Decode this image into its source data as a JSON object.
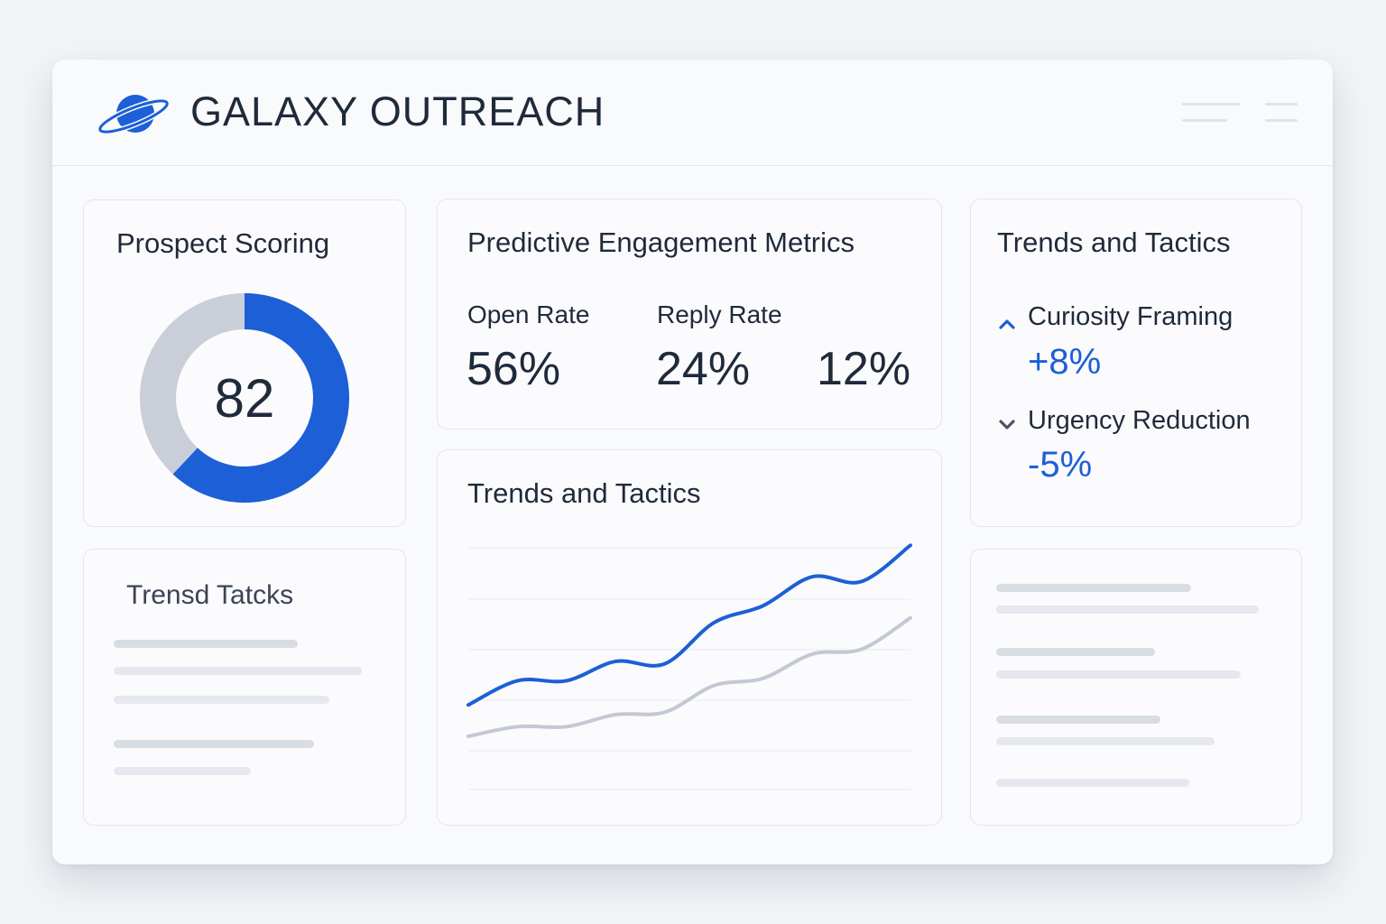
{
  "app": {
    "title": "GALAXY OUTREACH",
    "logo_icon": "planet-ring-icon",
    "menu_icon": "menu-lines-icon"
  },
  "colors": {
    "accent": "#1c5fd6",
    "secondary_line": "#c2c8d4",
    "donut_track": "#c9ced8",
    "text": "#1f2a3a"
  },
  "prospect_scoring": {
    "title": "Prospect Scoring",
    "score": "82",
    "score_fraction": 0.62
  },
  "engagement": {
    "title": "Predictive Engagement Metrics",
    "metrics": [
      {
        "label": "Open Rate",
        "value": "56%"
      },
      {
        "label": "Reply Rate",
        "value": "24%"
      },
      {
        "label": "",
        "value": "12%"
      }
    ]
  },
  "trends_tactics": {
    "title": "Trends and Tactics",
    "items": [
      {
        "label": "Curiosity Framing",
        "value": "+8%",
        "direction": "up",
        "icon": "chevron-up-icon"
      },
      {
        "label": "Urgency Reduction",
        "value": "-5%",
        "direction": "down",
        "icon": "chevron-down-icon"
      }
    ]
  },
  "trend_tactics_placeholder": {
    "title": "Trensd Tatcks"
  },
  "chart_card": {
    "title": "Trends and Tactics"
  },
  "chart_data": {
    "type": "line",
    "title": "Trends and Tactics",
    "xlabel": "",
    "ylabel": "",
    "ylim": [
      0,
      10
    ],
    "grid": true,
    "x": [
      0,
      1,
      2,
      3,
      4,
      5,
      6,
      7,
      8,
      9
    ],
    "series": [
      {
        "values": [
          3.5,
          4.5,
          4.5,
          5.3,
          5.2,
          6.9,
          7.6,
          8.8,
          8.6,
          10.1
        ]
      },
      {
        "values": [
          2.2,
          2.6,
          2.6,
          3.1,
          3.2,
          4.3,
          4.6,
          5.6,
          5.8,
          7.1
        ]
      }
    ]
  }
}
